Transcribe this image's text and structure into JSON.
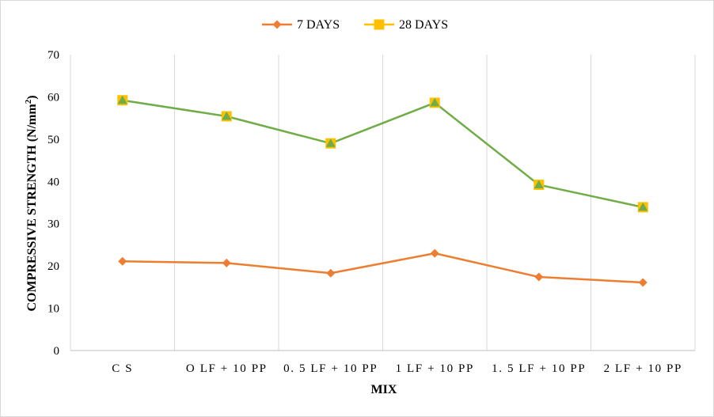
{
  "chart_data": {
    "type": "line",
    "title": "",
    "xlabel": "MIX",
    "ylabel_main": "COMPRESSIVE STRENGTH (N/mm",
    "ylabel_sup": "2",
    "ylabel_close": ")",
    "ylim": [
      0,
      70
    ],
    "yticks": [
      "0",
      "10",
      "20",
      "30",
      "40",
      "50",
      "60",
      "70"
    ],
    "grid": "vertical",
    "legend_position": "top-center",
    "categories": [
      "C S",
      "O LF + 10 PP",
      "0. 5 LF + 10 PP",
      "1 LF + 10 PP",
      "1. 5 LF + 10 PP",
      "2 LF + 10 PP"
    ],
    "series": [
      {
        "name": "7 DAYS",
        "values": [
          21.1,
          20.7,
          18.3,
          23.0,
          17.4,
          16.1
        ],
        "color": "#ED7D31",
        "marker": "diamond"
      },
      {
        "name": "28 DAYS",
        "values": [
          59.2,
          55.4,
          49.0,
          58.6,
          39.2,
          33.9
        ],
        "color": "#70AD47",
        "marker": "square",
        "marker_color": "#FFC000",
        "overlay_marker": "triangle",
        "overlay_marker_color": "#70AD47"
      }
    ]
  }
}
